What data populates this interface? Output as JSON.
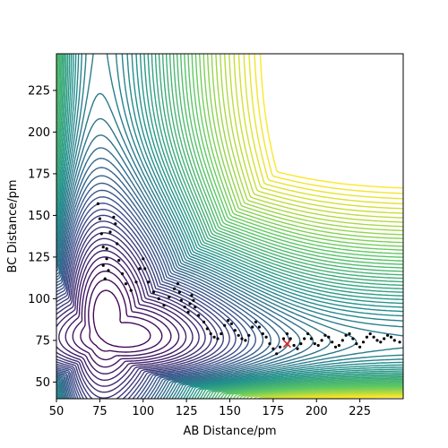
{
  "chart_data": {
    "type": "contour",
    "title": "",
    "xlabel": "AB Distance/pm",
    "ylabel": "BC Distance/pm",
    "xlim": [
      50,
      250
    ],
    "ylim": [
      40,
      247
    ],
    "xticks": [
      50,
      75,
      100,
      125,
      150,
      175,
      200,
      225
    ],
    "yticks": [
      50,
      75,
      100,
      125,
      150,
      175,
      200,
      225
    ],
    "grid": false,
    "legend": "none",
    "colormap": [
      "#440154",
      "#3b528b",
      "#21918c",
      "#5ec962",
      "#fde725"
    ],
    "surface": {
      "well_center": [
        75,
        74
      ],
      "well_depth": 430,
      "levels": 60
    },
    "trajectory": {
      "color": "#000000",
      "points": [
        [
          74,
          157
        ],
        [
          75,
          148
        ],
        [
          76,
          139
        ],
        [
          77,
          131
        ],
        [
          79,
          124
        ],
        [
          80,
          117
        ],
        [
          78,
          112
        ],
        [
          77,
          120
        ],
        [
          79,
          130
        ],
        [
          81,
          140
        ],
        [
          83,
          149
        ],
        [
          84,
          145
        ],
        [
          85,
          133
        ],
        [
          86,
          123
        ],
        [
          88,
          115
        ],
        [
          90,
          109
        ],
        [
          93,
          105
        ],
        [
          96,
          110
        ],
        [
          98,
          118
        ],
        [
          100,
          124
        ],
        [
          101,
          118
        ],
        [
          103,
          110
        ],
        [
          106,
          104
        ],
        [
          109,
          100
        ],
        [
          112,
          96
        ],
        [
          115,
          101
        ],
        [
          118,
          106
        ],
        [
          120,
          109
        ],
        [
          121,
          104
        ],
        [
          122,
          99
        ],
        [
          124,
          95
        ],
        [
          126,
          92
        ],
        [
          127,
          97
        ],
        [
          128,
          102
        ],
        [
          129,
          99
        ],
        [
          130,
          95
        ],
        [
          132,
          90
        ],
        [
          135,
          86
        ],
        [
          137,
          82
        ],
        [
          139,
          79
        ],
        [
          141,
          77
        ],
        [
          143,
          76
        ],
        [
          145,
          79
        ],
        [
          147,
          84
        ],
        [
          149,
          87
        ],
        [
          151,
          85
        ],
        [
          153,
          81
        ],
        [
          155,
          78
        ],
        [
          157,
          76
        ],
        [
          159,
          75
        ],
        [
          161,
          78
        ],
        [
          163,
          83
        ],
        [
          165,
          86
        ],
        [
          167,
          83
        ],
        [
          169,
          79
        ],
        [
          171,
          77
        ],
        [
          173,
          73
        ],
        [
          175,
          70
        ],
        [
          177,
          67
        ],
        [
          179,
          71
        ],
        [
          181,
          76
        ],
        [
          183,
          79
        ],
        [
          185,
          76
        ],
        [
          187,
          72
        ],
        [
          189,
          70
        ],
        [
          191,
          73
        ],
        [
          193,
          76
        ],
        [
          195,
          79
        ],
        [
          197,
          76
        ],
        [
          199,
          73
        ],
        [
          201,
          72
        ],
        [
          203,
          75
        ],
        [
          205,
          78
        ],
        [
          207,
          77
        ],
        [
          209,
          74
        ],
        [
          211,
          71
        ],
        [
          213,
          72
        ],
        [
          215,
          75
        ],
        [
          217,
          78
        ],
        [
          219,
          79
        ],
        [
          221,
          76
        ],
        [
          223,
          73
        ],
        [
          225,
          71
        ],
        [
          227,
          74
        ],
        [
          229,
          77
        ],
        [
          231,
          79
        ],
        [
          233,
          77
        ],
        [
          235,
          75
        ],
        [
          237,
          74
        ],
        [
          239,
          76
        ],
        [
          241,
          78
        ],
        [
          243,
          77
        ],
        [
          245,
          75
        ],
        [
          248,
          74
        ]
      ]
    },
    "final_point": {
      "x": 183,
      "y": 73,
      "color": "#d62728",
      "marker": "x"
    }
  }
}
